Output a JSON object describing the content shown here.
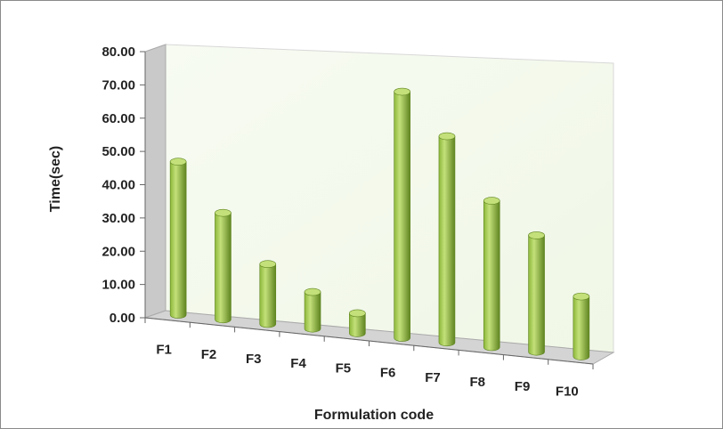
{
  "chart_data": {
    "type": "bar",
    "style": "3d-cylinder",
    "categories": [
      "F1",
      "F2",
      "F3",
      "F4",
      "F5",
      "F6",
      "F7",
      "F8",
      "F9",
      "F10"
    ],
    "values": [
      46,
      32,
      18,
      11,
      6,
      74,
      62,
      44,
      35,
      18
    ],
    "xlabel": "Formulation code",
    "ylabel": "Time(sec)",
    "ylim": [
      0,
      80
    ],
    "yticks": [
      "0.00",
      "10.00",
      "20.00",
      "30.00",
      "40.00",
      "50.00",
      "60.00",
      "70.00",
      "80.00"
    ],
    "grid": false,
    "legend": "none",
    "colors": {
      "bar_light": "#c3e07a",
      "bar_mid": "#8db83a",
      "bar_dark": "#5f8420",
      "back_wall": "#f0f7e6",
      "side_wall": "#c9c9c9",
      "floor": "#d4d4d4"
    }
  }
}
